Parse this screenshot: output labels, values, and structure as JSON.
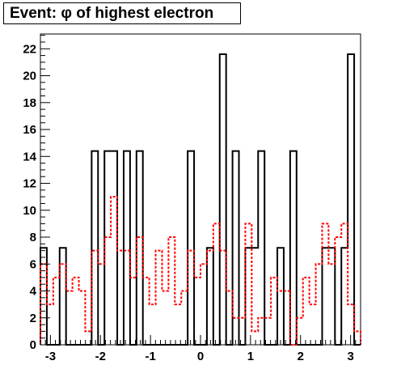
{
  "title": "Event: φ of highest electron",
  "chart_data": {
    "type": "histogram",
    "title": "Event: φ of highest electron",
    "xlabel": "",
    "ylabel": "",
    "xlim": [
      -3.2,
      3.2
    ],
    "ylim": [
      0,
      23.1
    ],
    "x_ticks": [
      -3,
      -2,
      -1,
      0,
      1,
      2,
      3
    ],
    "y_ticks": [
      0,
      2,
      4,
      6,
      8,
      10,
      12,
      14,
      16,
      18,
      20,
      22
    ],
    "bin_edges": [
      -3.2,
      -3.072,
      -2.944,
      -2.816,
      -2.688,
      -2.56,
      -2.432,
      -2.304,
      -2.176,
      -2.048,
      -1.92,
      -1.792,
      -1.664,
      -1.536,
      -1.408,
      -1.28,
      -1.152,
      -1.024,
      -0.896,
      -0.768,
      -0.64,
      -0.512,
      -0.384,
      -0.256,
      -0.128,
      0.0,
      0.128,
      0.256,
      0.384,
      0.512,
      0.64,
      0.768,
      0.896,
      1.024,
      1.152,
      1.28,
      1.408,
      1.536,
      1.664,
      1.792,
      1.92,
      2.048,
      2.176,
      2.304,
      2.432,
      2.56,
      2.688,
      2.816,
      2.944,
      3.072,
      3.2
    ],
    "series": [
      {
        "style": "solid",
        "color": "#000000",
        "values": [
          7.2,
          0,
          0,
          7.2,
          0,
          0,
          0,
          0,
          14.4,
          0,
          14.4,
          14.4,
          0,
          14.4,
          0,
          14.4,
          0,
          0,
          0,
          0,
          0,
          0,
          0,
          14.4,
          0,
          0,
          7.2,
          0,
          21.6,
          0,
          14.4,
          0,
          7.2,
          7.2,
          14.4,
          0,
          0,
          7.2,
          0,
          14.4,
          0,
          0,
          0,
          0,
          7.2,
          7.2,
          0,
          7.2,
          21.6,
          0
        ]
      },
      {
        "style": "dashed",
        "color": "#ff0000",
        "values": [
          6,
          3,
          5,
          6,
          4,
          5,
          4,
          1,
          7,
          6,
          8,
          11,
          7,
          7,
          5,
          8,
          5,
          3,
          7,
          4,
          8,
          3,
          4,
          7,
          5,
          6,
          7,
          9,
          7,
          4,
          2,
          2,
          9,
          1,
          2,
          2,
          5,
          4,
          4,
          0,
          2,
          5,
          3,
          6,
          9,
          6,
          8,
          9,
          3,
          1
        ]
      }
    ]
  }
}
